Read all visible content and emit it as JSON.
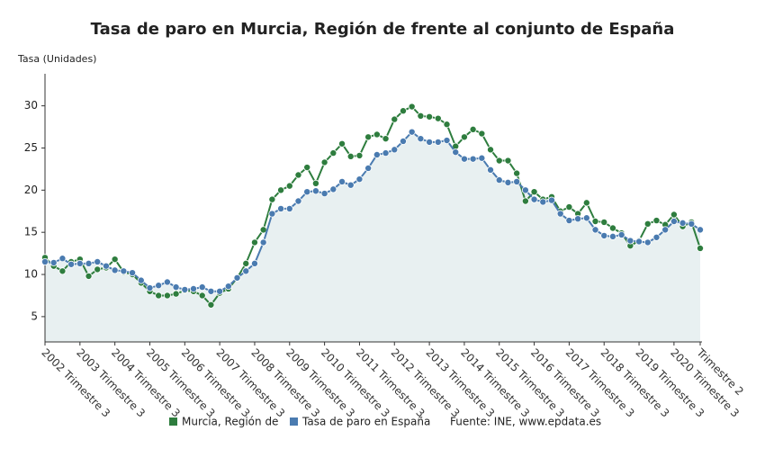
{
  "chart_data": {
    "type": "line",
    "title": "Tasa de paro en Murcia, Región de frente al conjunto de España",
    "y_label": "Tasa (Unidades)",
    "source": "Fuente: INE, www.epdata.es",
    "categories": [
      "2002 Trimestre 3",
      null,
      null,
      null,
      "2003 Trimestre 3",
      null,
      null,
      null,
      "2004 Trimestre 3",
      null,
      null,
      null,
      "2005 Trimestre 3",
      null,
      null,
      null,
      "2006 Trimestre 3",
      null,
      null,
      null,
      "2007 Trimestre 3",
      null,
      null,
      null,
      "2008 Trimestre 3",
      null,
      null,
      null,
      "2009 Trimestre 3",
      null,
      null,
      null,
      "2010 Trimestre 3",
      null,
      null,
      null,
      "2011 Trimestre 3",
      null,
      null,
      null,
      "2012 Trimestre 3",
      null,
      null,
      null,
      "2013 Trimestre 3",
      null,
      null,
      null,
      "2014 Trimestre 3",
      null,
      null,
      null,
      "2015 Trimestre 3",
      null,
      null,
      null,
      "2016 Trimestre 3",
      null,
      null,
      null,
      "2017 Trimestre 3",
      null,
      null,
      null,
      "2018 Trimestre 3",
      null,
      null,
      null,
      "2019 Trimestre 3",
      null,
      null,
      null,
      "2020 Trimestre 3",
      null,
      null,
      "Trimestre 2"
    ],
    "series": [
      {
        "name": "Murcia, Región de",
        "color": "#2e7d3e",
        "values": [
          12.0,
          11.0,
          10.4,
          11.5,
          11.8,
          9.8,
          10.6,
          10.8,
          11.8,
          10.3,
          10.0,
          9.0,
          8.0,
          7.5,
          7.5,
          7.7,
          8.1,
          8.0,
          7.5,
          6.4,
          7.8,
          8.3,
          9.6,
          11.3,
          13.8,
          15.3,
          18.9,
          20.0,
          20.5,
          21.8,
          22.7,
          20.8,
          23.3,
          24.4,
          25.5,
          24.0,
          24.1,
          26.3,
          26.6,
          26.1,
          28.4,
          29.4,
          29.9,
          28.8,
          28.7,
          28.5,
          27.8,
          25.2,
          26.3,
          27.2,
          26.7,
          24.8,
          23.5,
          23.5,
          22.0,
          18.7,
          19.8,
          18.9,
          19.2,
          17.5,
          18.0,
          17.2,
          18.5,
          16.3,
          16.2,
          15.5,
          14.9,
          13.4,
          14.0,
          16.0,
          16.4,
          15.9,
          17.1,
          15.7,
          16.2,
          13.1
        ]
      },
      {
        "name": "Tasa de paro en España",
        "color": "#4a7bb0",
        "area": true,
        "values": [
          11.5,
          11.4,
          11.9,
          11.2,
          11.3,
          11.3,
          11.5,
          11.0,
          10.5,
          10.4,
          10.2,
          9.3,
          8.4,
          8.7,
          9.1,
          8.5,
          8.2,
          8.3,
          8.5,
          8.0,
          8.0,
          8.6,
          9.6,
          10.4,
          11.3,
          13.8,
          17.2,
          17.8,
          17.8,
          18.7,
          19.8,
          19.9,
          19.6,
          20.1,
          21.0,
          20.6,
          21.3,
          22.6,
          24.2,
          24.4,
          24.8,
          25.8,
          26.9,
          26.1,
          25.7,
          25.7,
          25.9,
          24.5,
          23.7,
          23.7,
          23.8,
          22.4,
          21.2,
          20.9,
          21.0,
          20.0,
          18.9,
          18.6,
          18.8,
          17.2,
          16.4,
          16.6,
          16.7,
          15.3,
          14.6,
          14.5,
          14.7,
          14.0,
          13.9,
          13.8,
          14.4,
          15.3,
          16.3,
          16.1,
          16.0,
          15.3
        ]
      }
    ],
    "ylim": [
      2,
      33.8
    ],
    "yticks": [
      5,
      10,
      15,
      20,
      25,
      30
    ],
    "grid": false
  }
}
